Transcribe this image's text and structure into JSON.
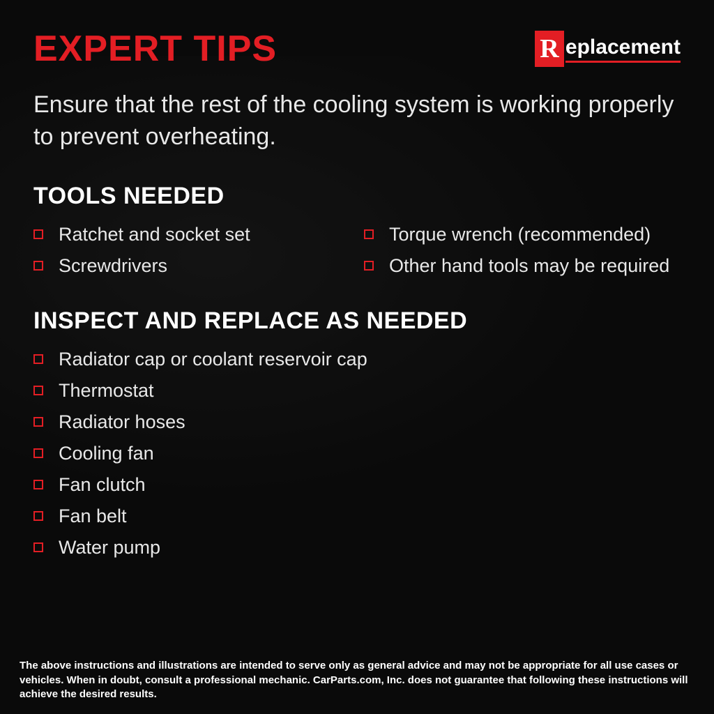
{
  "colors": {
    "accent": "#e31e24",
    "background": "#0a0a0a",
    "text": "#e8e8e8",
    "heading": "#ffffff"
  },
  "header": {
    "title": "EXPERT TIPS",
    "title_color": "#e31e24",
    "logo_r": "R",
    "logo_rest": "eplacement"
  },
  "intro": "Ensure that the rest of the cooling system is working properly to prevent overheating.",
  "sections": {
    "tools": {
      "heading": "TOOLS NEEDED",
      "items": [
        "Ratchet and socket set",
        "Torque wrench (recommended)",
        "Screwdrivers",
        "Other hand tools may be required"
      ]
    },
    "inspect": {
      "heading": "INSPECT AND REPLACE AS NEEDED",
      "items": [
        "Radiator cap or coolant reservoir cap",
        "Thermostat",
        "Radiator hoses",
        "Cooling fan",
        "Fan clutch",
        "Fan belt",
        "Water pump"
      ]
    }
  },
  "disclaimer": "The above instructions and illustrations are intended to serve only as general advice and may not be appropriate for all use cases or vehicles. When in doubt, consult a professional mechanic. CarParts.com, Inc. does not guarantee that following these instructions will achieve the desired results."
}
